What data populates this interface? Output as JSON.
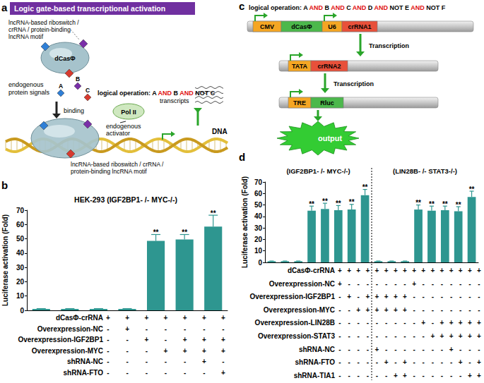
{
  "panels": {
    "a": {
      "letter": "a",
      "header": "Logic gate-based transcriptional activation",
      "motif_label_top": [
        "lncRNA-based riboswitch /",
        "crRNA / protein-binding",
        "lncRNA motif"
      ],
      "protein": "dCasΦ",
      "signals_label": [
        "endogenous",
        "protein signals"
      ],
      "signals": [
        "A",
        "B",
        "C"
      ],
      "logical_operation": "logical operation: A AND B AND NOT C",
      "highlight": "AND",
      "binding": "binding",
      "polymerase": "Pol II",
      "activator_label": [
        "endogenous",
        "activator"
      ],
      "transcripts": "transcripts",
      "dna": "DNA",
      "motif_label_bottom": [
        "lncRNA-based riboswitch / crRNA /",
        "protein-binding lncRNA motif"
      ]
    },
    "c": {
      "letter": "c",
      "logical_operation": "logical operation: A AND B AND C AND D AND NOT E AND NOT F",
      "highlight": "AND",
      "constructs": [
        [
          "CMV",
          "dCasΦ",
          "U6",
          "crRNA1"
        ],
        [
          "TATA",
          "crRNA2"
        ],
        [
          "TRE",
          "Rluc"
        ]
      ],
      "transcription": [
        "Transcription",
        "Transcription"
      ],
      "output": "output"
    }
  },
  "chart_data": [
    {
      "letter": "b",
      "type": "bar",
      "title": "HEK-293 (IGF2BP1- /- MYC-/-)",
      "y_label": "Luciferase activation (Fold)",
      "categories": [
        null,
        null,
        null,
        null,
        null,
        null,
        null
      ],
      "values": [
        1,
        1,
        1,
        1,
        48.5,
        49.5,
        58.5
      ],
      "errors": [
        0.2,
        0.2,
        0.2,
        0.2,
        4.5,
        3.5,
        8
      ],
      "significance": [
        null,
        null,
        null,
        null,
        "**",
        "**",
        "**"
      ],
      "color": "#2e9690",
      "ylim": [
        0,
        70
      ],
      "yticks": [
        0,
        10,
        20,
        30,
        40,
        50,
        60,
        70
      ],
      "grid": false,
      "tick_labels": "y",
      "conditions": [
        {
          "label": "dCasΦ-crRNA",
          "signs": [
            "+",
            "+",
            "+",
            "+",
            "+",
            "+",
            "+"
          ]
        },
        {
          "label": "Overexpression-NC",
          "signs": [
            "-",
            "+",
            "-",
            "-",
            "-",
            "-",
            "-"
          ]
        },
        {
          "label": "Overexpression-IGF2BP1",
          "signs": [
            "-",
            "-",
            "+",
            "-",
            "+",
            "+",
            "+"
          ]
        },
        {
          "label": "Overexpression-MYC",
          "signs": [
            "-",
            "-",
            "-",
            "+",
            "+",
            "+",
            "+"
          ]
        },
        {
          "label": "shRNA-NC",
          "signs": [
            "-",
            "-",
            "-",
            "-",
            "-",
            "+",
            "-"
          ]
        },
        {
          "label": "shRNA-FTO",
          "signs": [
            "-",
            "-",
            "-",
            "-",
            "-",
            "-",
            "+"
          ]
        }
      ]
    },
    {
      "letter": "d",
      "type": "bar",
      "y_label": "Luciferase activation (Fold)",
      "color": "#2e9690",
      "ylim": [
        0,
        70
      ],
      "yticks": [
        0,
        10,
        20,
        30,
        40,
        50,
        60,
        70
      ],
      "grid": false,
      "tick_labels": "y",
      "groups": [
        {
          "title": "(IGF2BP1- /- MYC-/-)",
          "categories": [
            null,
            null,
            null,
            null,
            null,
            null,
            null,
            null
          ],
          "values": [
            1,
            1,
            1,
            45,
            46.5,
            45.5,
            46,
            58.5
          ],
          "errors": [
            0.2,
            0.2,
            0.2,
            4,
            5,
            4,
            4.5,
            5
          ],
          "significance": [
            null,
            null,
            null,
            "**",
            "**",
            "**",
            "**",
            "**"
          ]
        },
        {
          "title": "(LIN28B- /- STAT3-/-)",
          "categories": [
            null,
            null,
            null,
            null,
            null,
            null,
            null,
            null
          ],
          "values": [
            1,
            1,
            1,
            46,
            45,
            45.5,
            44.5,
            57
          ],
          "errors": [
            0.2,
            0.2,
            0.2,
            4,
            4,
            3.5,
            4,
            5
          ],
          "significance": [
            null,
            null,
            null,
            "**",
            "**",
            "**",
            "**",
            "**"
          ]
        }
      ],
      "conditions": [
        {
          "label": "dCasΦ-crRNA",
          "signs": [
            "+",
            "+",
            "+",
            "+",
            "+",
            "+",
            "+",
            "+",
            "+",
            "+",
            "+",
            "+",
            "+",
            "+",
            "+",
            "+"
          ]
        },
        {
          "label": "Overexpression-NC",
          "signs": [
            "+",
            "-",
            "-",
            "-",
            "-",
            "-",
            "-",
            "-",
            "+",
            "-",
            "-",
            "-",
            "-",
            "-",
            "-",
            "-"
          ]
        },
        {
          "label": "Overexpression-IGF2BP1",
          "signs": [
            "-",
            "+",
            "-",
            "+",
            "+",
            "+",
            "+",
            "+",
            "-",
            "-",
            "-",
            "-",
            "-",
            "-",
            "-",
            "-"
          ]
        },
        {
          "label": "Overexpression-MYC",
          "signs": [
            "-",
            "-",
            "+",
            "+",
            "+",
            "+",
            "+",
            "+",
            "-",
            "-",
            "-",
            "-",
            "-",
            "-",
            "-",
            "-"
          ]
        },
        {
          "label": "Overexpression-LIN28B",
          "signs": [
            "-",
            "-",
            "-",
            "-",
            "-",
            "-",
            "-",
            "-",
            "-",
            "+",
            "-",
            "+",
            "+",
            "+",
            "+",
            "+"
          ]
        },
        {
          "label": "Overexpression-STAT3",
          "signs": [
            "-",
            "-",
            "-",
            "-",
            "-",
            "-",
            "-",
            "-",
            "-",
            "-",
            "+",
            "+",
            "+",
            "+",
            "+",
            "+"
          ]
        },
        {
          "label": "shRNA-NC",
          "signs": [
            "-",
            "-",
            "-",
            "-",
            "+",
            "-",
            "-",
            "-",
            "-",
            "-",
            "-",
            "-",
            "+",
            "-",
            "-",
            "-"
          ]
        },
        {
          "label": "shRNA-FTO",
          "signs": [
            "-",
            "-",
            "-",
            "-",
            "-",
            "+",
            "-",
            "+",
            "-",
            "-",
            "-",
            "-",
            "-",
            "+",
            "-",
            "+"
          ]
        },
        {
          "label": "shRNA-TIA1",
          "signs": [
            "-",
            "-",
            "-",
            "-",
            "-",
            "-",
            "+",
            "+",
            "-",
            "-",
            "-",
            "-",
            "-",
            "-",
            "+",
            "+"
          ]
        }
      ]
    }
  ]
}
